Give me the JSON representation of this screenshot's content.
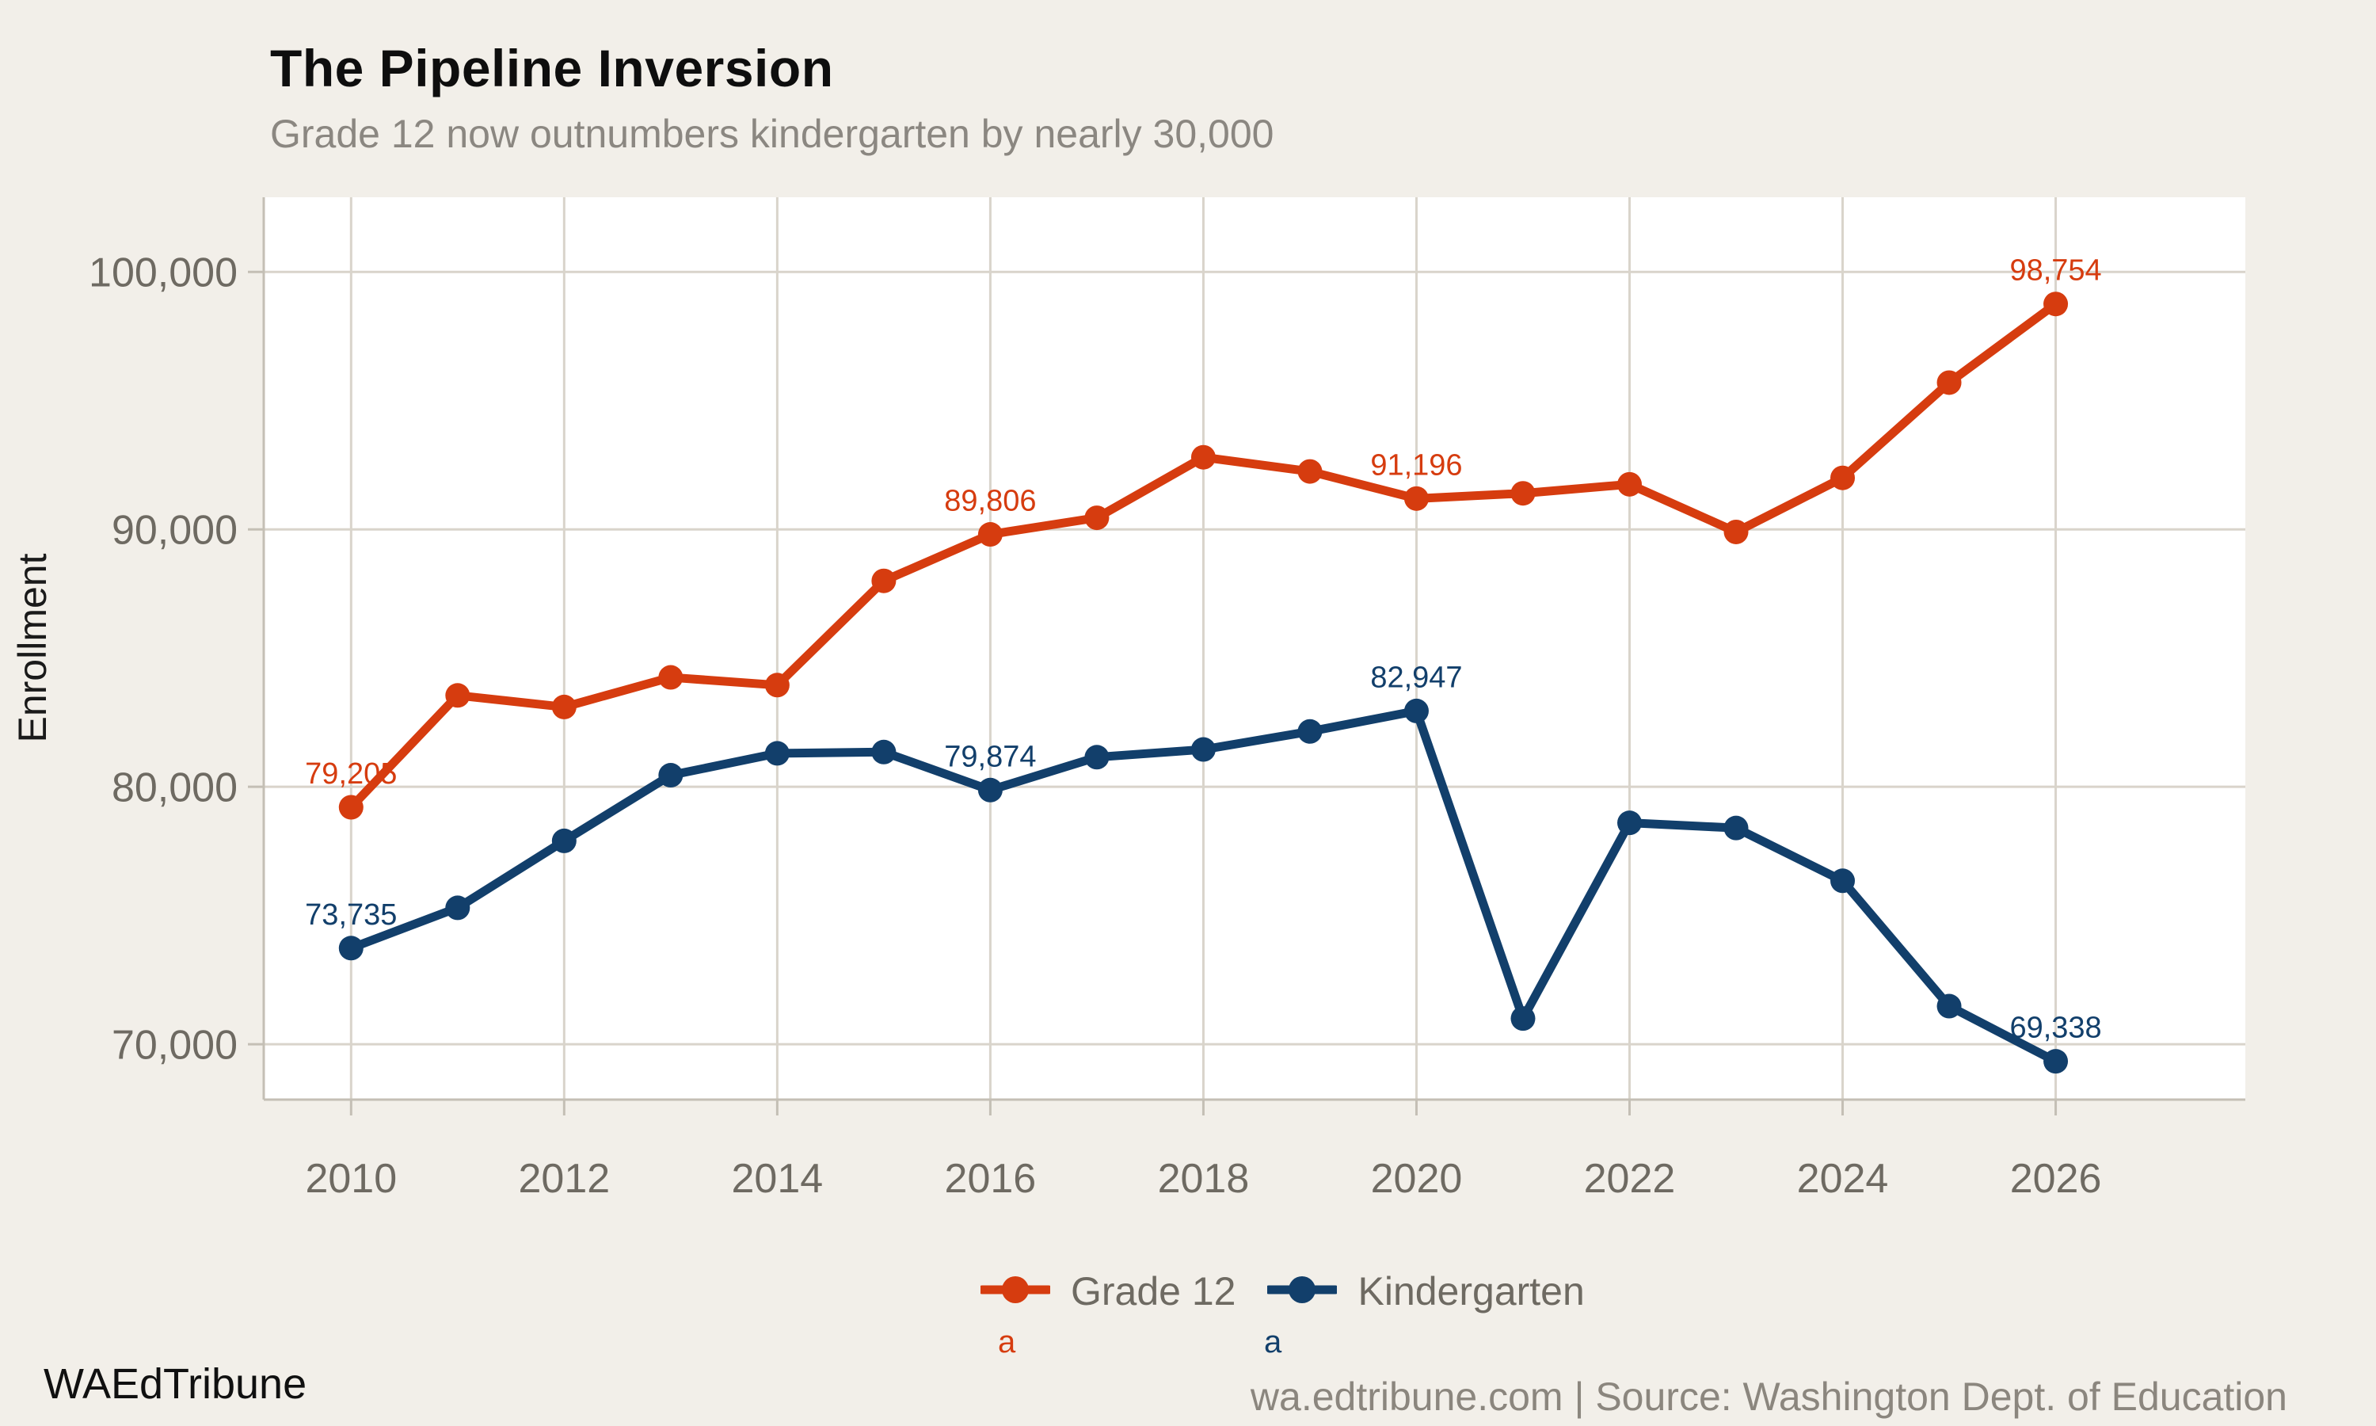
{
  "header": {
    "title": "The Pipeline Inversion",
    "subtitle": "Grade 12 now outnumbers kindergarten by nearly 30,000"
  },
  "footer": {
    "brand": "WAEdTribune",
    "source": "wa.edtribune.com | Source: Washington Dept. of Education"
  },
  "legend": {
    "a_glyph": "a"
  },
  "colors": {
    "background": "#f2efe9",
    "panel": "#ffffff",
    "grid": "#d9d4cb",
    "axis": "#c4bfb5",
    "tick_text": "#6e6a62",
    "title": "#0e0e0e",
    "subtitle": "#8b8781",
    "footer_text": "#8b867e",
    "grade12": "#d63c0f",
    "kindergarten": "#123f6b"
  },
  "chart_data": {
    "type": "line",
    "title": "The Pipeline Inversion",
    "subtitle": "Grade 12 now outnumbers kindergarten by nearly 30,000",
    "x": [
      2010,
      2011,
      2012,
      2013,
      2014,
      2015,
      2016,
      2017,
      2018,
      2019,
      2020,
      2021,
      2022,
      2023,
      2024,
      2025,
      2026
    ],
    "series": [
      {
        "name": "Grade 12",
        "color": "#d63c0f",
        "values": [
          79205,
          83550,
          83100,
          84250,
          83950,
          88000,
          89806,
          90450,
          92800,
          92250,
          91196,
          91400,
          91750,
          89900,
          92000,
          95700,
          98754
        ]
      },
      {
        "name": "Kindergarten",
        "color": "#123f6b",
        "values": [
          73735,
          75300,
          77900,
          80450,
          81300,
          81350,
          79874,
          81150,
          81450,
          82150,
          82947,
          71000,
          78600,
          78400,
          76350,
          71480,
          69338
        ]
      }
    ],
    "point_labels": [
      {
        "series": 0,
        "x": 2010,
        "label": "79,205"
      },
      {
        "series": 0,
        "x": 2016,
        "label": "89,806"
      },
      {
        "series": 0,
        "x": 2020,
        "label": "91,196"
      },
      {
        "series": 0,
        "x": 2026,
        "label": "98,754"
      },
      {
        "series": 1,
        "x": 2010,
        "label": "73,735"
      },
      {
        "series": 1,
        "x": 2016,
        "label": "79,874"
      },
      {
        "series": 1,
        "x": 2020,
        "label": "82,947"
      },
      {
        "series": 1,
        "x": 2026,
        "label": "69,338"
      }
    ],
    "xticks": {
      "values": [
        2010,
        2012,
        2014,
        2016,
        2018,
        2020,
        2022,
        2024,
        2026
      ],
      "labels": [
        "2010",
        "2012",
        "2014",
        "2016",
        "2018",
        "2020",
        "2022",
        "2024",
        "2026"
      ]
    },
    "yticks": {
      "values": [
        70000,
        80000,
        90000,
        100000
      ],
      "labels": [
        "70,000",
        "80,000",
        "90,000",
        "100,000"
      ]
    },
    "ylabel": "Enrollment",
    "xlabel": "",
    "xlim": [
      2009.18,
      2027.78
    ],
    "ylim": [
      67850,
      102900
    ],
    "grid": true,
    "legend_position": "bottom"
  }
}
